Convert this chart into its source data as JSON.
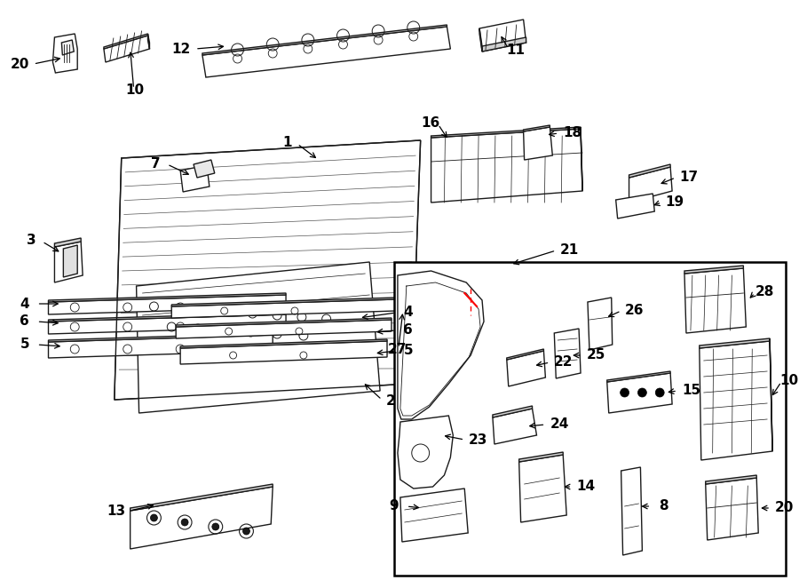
{
  "bg_color": "#ffffff",
  "fig_width": 9.0,
  "fig_height": 6.62,
  "dpi": 100
}
